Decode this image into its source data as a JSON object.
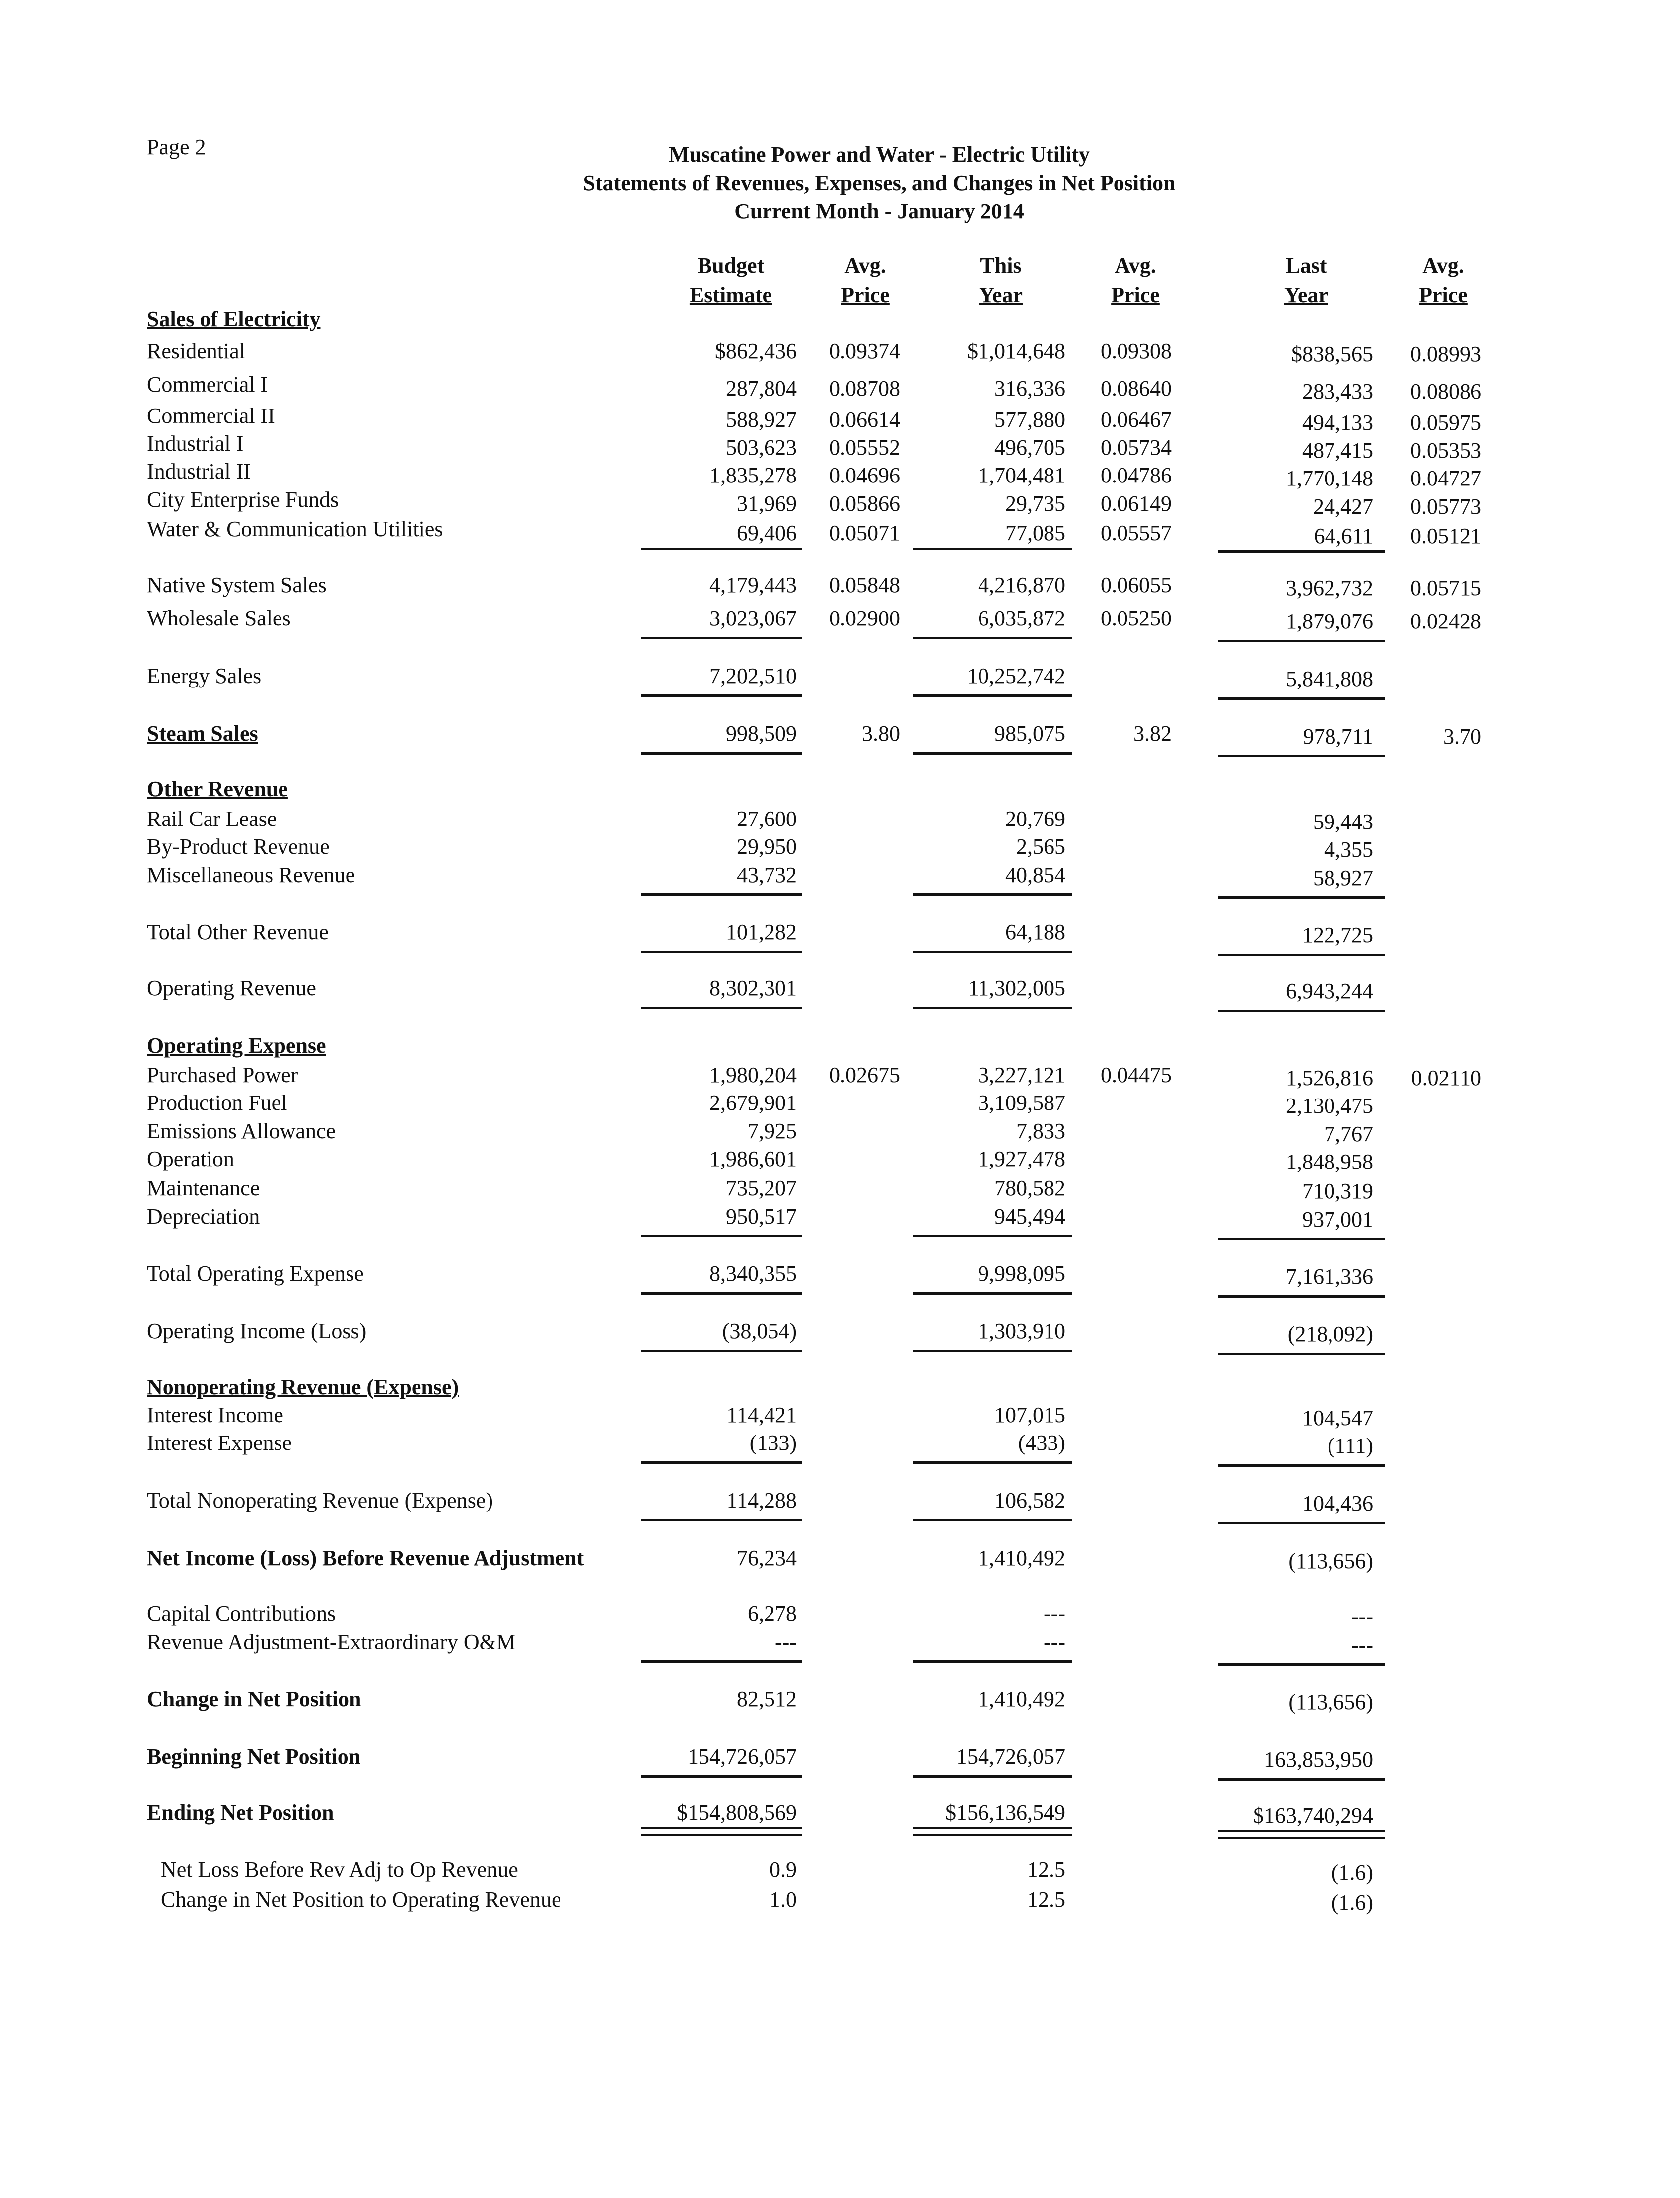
{
  "page_label": "Page 2",
  "title": {
    "line1": "Muscatine Power and Water - Electric Utility",
    "line2": "Statements of Revenues, Expenses, and Changes in Net Position",
    "line3": "Current Month - January 2014"
  },
  "columns": [
    {
      "top": "Budget",
      "bottom": "Estimate"
    },
    {
      "top": "Avg.",
      "bottom": "Price"
    },
    {
      "top": "This",
      "bottom": "Year"
    },
    {
      "top": "Avg.",
      "bottom": "Price"
    },
    {
      "top": "Last",
      "bottom": "Year"
    },
    {
      "top": "Avg.",
      "bottom": "Price"
    }
  ],
  "rows": [
    {
      "label": "Sales of Electricity",
      "values": [
        "",
        "",
        "",
        "",
        "",
        ""
      ]
    },
    {
      "label": "Residential",
      "values": [
        "$862,436",
        "0.09374",
        "$1,014,648",
        "0.09308",
        "$838,565",
        "0.08993"
      ]
    },
    {
      "label": "Commercial I",
      "values": [
        "287,804",
        "0.08708",
        "316,336",
        "0.08640",
        "283,433",
        "0.08086"
      ]
    },
    {
      "label": "Commercial II",
      "values": [
        "588,927",
        "0.06614",
        "577,880",
        "0.06467",
        "494,133",
        "0.05975"
      ]
    },
    {
      "label": "Industrial I",
      "values": [
        "503,623",
        "0.05552",
        "496,705",
        "0.05734",
        "487,415",
        "0.05353"
      ]
    },
    {
      "label": "Industrial II",
      "values": [
        "1,835,278",
        "0.04696",
        "1,704,481",
        "0.04786",
        "1,770,148",
        "0.04727"
      ]
    },
    {
      "label": "City Enterprise Funds",
      "values": [
        "31,969",
        "0.05866",
        "29,735",
        "0.06149",
        "24,427",
        "0.05773"
      ]
    },
    {
      "label": "Water & Communication Utilities",
      "values": [
        "69,406",
        "0.05071",
        "77,085",
        "0.05557",
        "64,611",
        "0.05121"
      ]
    },
    {
      "label": "Native System Sales",
      "values": [
        "4,179,443",
        "0.05848",
        "4,216,870",
        "0.06055",
        "3,962,732",
        "0.05715"
      ]
    },
    {
      "label": "Wholesale Sales",
      "values": [
        "3,023,067",
        "0.02900",
        "6,035,872",
        "0.05250",
        "1,879,076",
        "0.02428"
      ]
    },
    {
      "label": "Energy Sales",
      "values": [
        "7,202,510",
        "",
        "10,252,742",
        "",
        "5,841,808",
        ""
      ]
    },
    {
      "label": "Steam Sales",
      "values": [
        "998,509",
        "3.80",
        "985,075",
        "3.82",
        "978,711",
        "3.70"
      ]
    },
    {
      "label": "Other Revenue",
      "values": [
        "",
        "",
        "",
        "",
        "",
        ""
      ]
    },
    {
      "label": "Rail Car Lease",
      "values": [
        "27,600",
        "",
        "20,769",
        "",
        "59,443",
        ""
      ]
    },
    {
      "label": "By-Product Revenue",
      "values": [
        "29,950",
        "",
        "2,565",
        "",
        "4,355",
        ""
      ]
    },
    {
      "label": "Miscellaneous Revenue",
      "values": [
        "43,732",
        "",
        "40,854",
        "",
        "58,927",
        ""
      ]
    },
    {
      "label": "Total Other Revenue",
      "values": [
        "101,282",
        "",
        "64,188",
        "",
        "122,725",
        ""
      ]
    },
    {
      "label": "Operating Revenue",
      "values": [
        "8,302,301",
        "",
        "11,302,005",
        "",
        "6,943,244",
        ""
      ]
    },
    {
      "label": "Operating Expense",
      "values": [
        "",
        "",
        "",
        "",
        "",
        ""
      ]
    },
    {
      "label": "Purchased Power",
      "values": [
        "1,980,204",
        "0.02675",
        "3,227,121",
        "0.04475",
        "1,526,816",
        "0.02110"
      ]
    },
    {
      "label": "Production Fuel",
      "values": [
        "2,679,901",
        "",
        "3,109,587",
        "",
        "2,130,475",
        ""
      ]
    },
    {
      "label": "Emissions Allowance",
      "values": [
        "7,925",
        "",
        "7,833",
        "",
        "7,767",
        ""
      ]
    },
    {
      "label": "Operation",
      "values": [
        "1,986,601",
        "",
        "1,927,478",
        "",
        "1,848,958",
        ""
      ]
    },
    {
      "label": "Maintenance",
      "values": [
        "735,207",
        "",
        "780,582",
        "",
        "710,319",
        ""
      ]
    },
    {
      "label": "Depreciation",
      "values": [
        "950,517",
        "",
        "945,494",
        "",
        "937,001",
        ""
      ]
    },
    {
      "label": "Total Operating Expense",
      "values": [
        "8,340,355",
        "",
        "9,998,095",
        "",
        "7,161,336",
        ""
      ]
    },
    {
      "label": "Operating Income (Loss)",
      "values": [
        "(38,054)",
        "",
        "1,303,910",
        "",
        "(218,092)",
        ""
      ]
    },
    {
      "label": "Nonoperating Revenue (Expense)",
      "values": [
        "",
        "",
        "",
        "",
        "",
        ""
      ]
    },
    {
      "label": "Interest Income",
      "values": [
        "114,421",
        "",
        "107,015",
        "",
        "104,547",
        ""
      ]
    },
    {
      "label": "Interest Expense",
      "values": [
        "(133)",
        "",
        "(433)",
        "",
        "(111)",
        ""
      ]
    },
    {
      "label": "Total Nonoperating Revenue (Expense)",
      "values": [
        "114,288",
        "",
        "106,582",
        "",
        "104,436",
        ""
      ]
    },
    {
      "label": "Net Income (Loss) Before Revenue Adjustment",
      "values": [
        "76,234",
        "",
        "1,410,492",
        "",
        "(113,656)",
        ""
      ]
    },
    {
      "label": "Capital Contributions",
      "values": [
        "6,278",
        "",
        "---",
        "",
        "---",
        ""
      ]
    },
    {
      "label": "Revenue Adjustment-Extraordinary O&M",
      "values": [
        "---",
        "",
        "---",
        "",
        "---",
        ""
      ]
    },
    {
      "label": "Change in Net Position",
      "values": [
        "82,512",
        "",
        "1,410,492",
        "",
        "(113,656)",
        ""
      ]
    },
    {
      "label": "Beginning Net Position",
      "values": [
        "154,726,057",
        "",
        "154,726,057",
        "",
        "163,853,950",
        ""
      ]
    },
    {
      "label": "Ending Net Position",
      "values": [
        "$154,808,569",
        "",
        "$156,136,549",
        "",
        "$163,740,294",
        ""
      ]
    },
    {
      "label": "Net Loss Before Rev Adj to Op Revenue",
      "values": [
        "0.9",
        "",
        "12.5",
        "",
        "(1.6)",
        ""
      ]
    },
    {
      "label": "Change in Net Position to Operating Revenue",
      "values": [
        "1.0",
        "",
        "12.5",
        "",
        "(1.6)",
        ""
      ]
    }
  ]
}
